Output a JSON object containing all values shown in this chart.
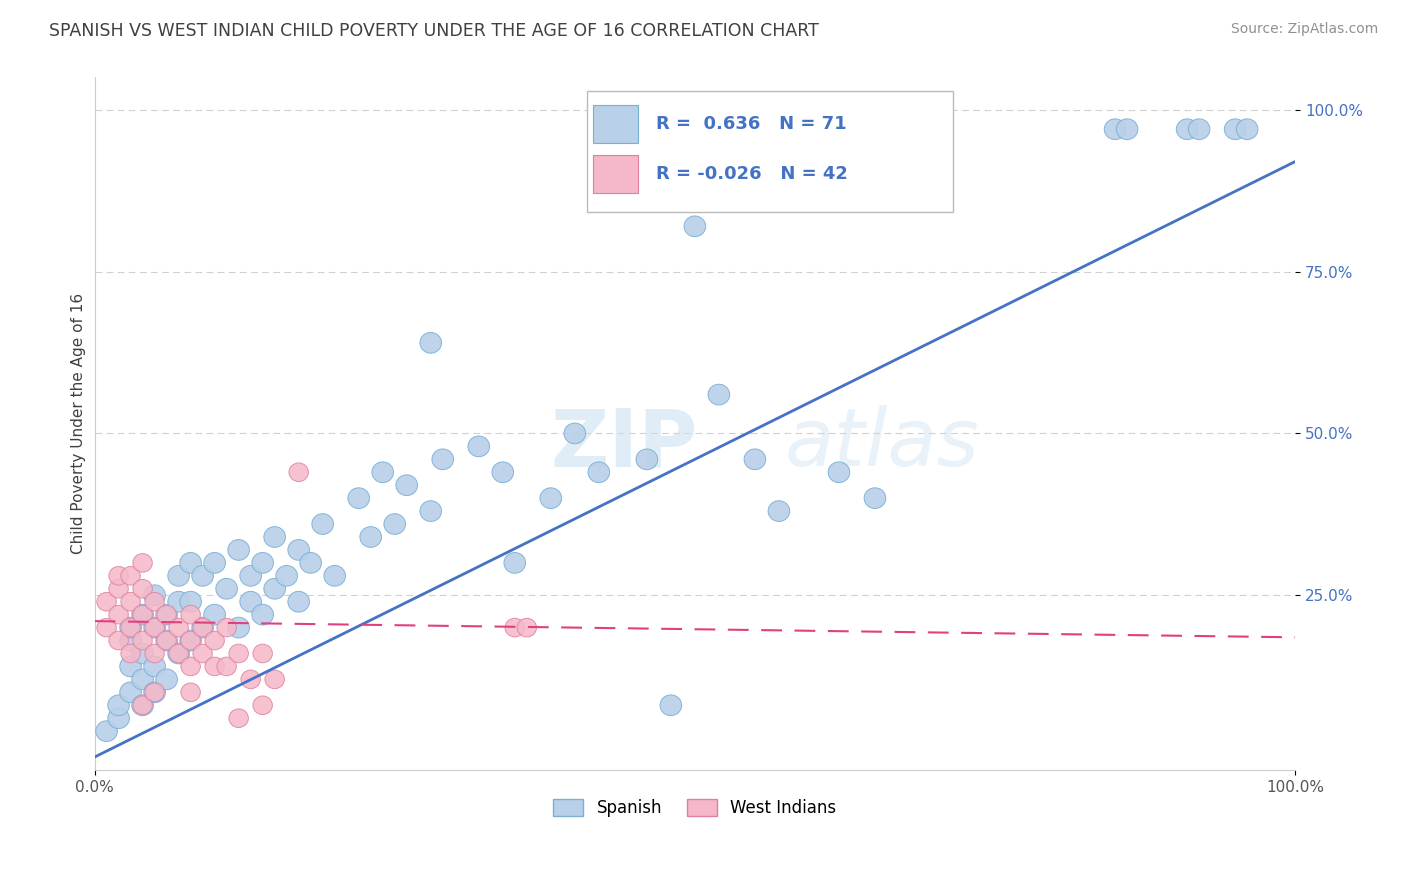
{
  "title": "SPANISH VS WEST INDIAN CHILD POVERTY UNDER THE AGE OF 16 CORRELATION CHART",
  "source": "Source: ZipAtlas.com",
  "ylabel": "Child Poverty Under the Age of 16",
  "xlim": [
    0.0,
    1.0
  ],
  "ylim": [
    -0.02,
    1.05
  ],
  "ytick_vals": [
    0.25,
    0.5,
    0.75,
    1.0
  ],
  "ytick_labels": [
    "25.0%",
    "50.0%",
    "75.0%",
    "100.0%"
  ],
  "blue_R": 0.636,
  "blue_N": 71,
  "pink_R": -0.026,
  "pink_N": 42,
  "blue_color": "#b8d0e8",
  "pink_color": "#f5b8c8",
  "blue_edge_color": "#7aafd4",
  "pink_edge_color": "#e080a0",
  "blue_line_color": "#4472c4",
  "pink_line_color": "#e04080",
  "title_color": "#404040",
  "source_color": "#909090",
  "watermark": "ZIPAtlas",
  "blue_trend_x": [
    0.0,
    1.0
  ],
  "blue_trend_y": [
    0.0,
    0.92
  ],
  "pink_trend_x": [
    0.0,
    1.0
  ],
  "pink_trend_y": [
    0.21,
    0.185
  ],
  "blue_scatter": [
    [
      0.01,
      0.04
    ],
    [
      0.02,
      0.06
    ],
    [
      0.02,
      0.08
    ],
    [
      0.03,
      0.1
    ],
    [
      0.03,
      0.14
    ],
    [
      0.03,
      0.18
    ],
    [
      0.03,
      0.2
    ],
    [
      0.04,
      0.08
    ],
    [
      0.04,
      0.12
    ],
    [
      0.04,
      0.16
    ],
    [
      0.04,
      0.22
    ],
    [
      0.05,
      0.1
    ],
    [
      0.05,
      0.14
    ],
    [
      0.05,
      0.2
    ],
    [
      0.05,
      0.25
    ],
    [
      0.06,
      0.12
    ],
    [
      0.06,
      0.18
    ],
    [
      0.06,
      0.22
    ],
    [
      0.07,
      0.16
    ],
    [
      0.07,
      0.24
    ],
    [
      0.07,
      0.28
    ],
    [
      0.08,
      0.18
    ],
    [
      0.08,
      0.24
    ],
    [
      0.08,
      0.3
    ],
    [
      0.09,
      0.2
    ],
    [
      0.09,
      0.28
    ],
    [
      0.1,
      0.22
    ],
    [
      0.1,
      0.3
    ],
    [
      0.11,
      0.26
    ],
    [
      0.12,
      0.2
    ],
    [
      0.12,
      0.32
    ],
    [
      0.13,
      0.24
    ],
    [
      0.13,
      0.28
    ],
    [
      0.14,
      0.22
    ],
    [
      0.14,
      0.3
    ],
    [
      0.15,
      0.26
    ],
    [
      0.15,
      0.34
    ],
    [
      0.16,
      0.28
    ],
    [
      0.17,
      0.24
    ],
    [
      0.17,
      0.32
    ],
    [
      0.18,
      0.3
    ],
    [
      0.19,
      0.36
    ],
    [
      0.2,
      0.28
    ],
    [
      0.22,
      0.4
    ],
    [
      0.23,
      0.34
    ],
    [
      0.24,
      0.44
    ],
    [
      0.25,
      0.36
    ],
    [
      0.26,
      0.42
    ],
    [
      0.28,
      0.38
    ],
    [
      0.29,
      0.46
    ],
    [
      0.32,
      0.48
    ],
    [
      0.34,
      0.44
    ],
    [
      0.35,
      0.3
    ],
    [
      0.38,
      0.4
    ],
    [
      0.4,
      0.5
    ],
    [
      0.42,
      0.44
    ],
    [
      0.46,
      0.46
    ],
    [
      0.5,
      0.82
    ],
    [
      0.52,
      0.56
    ],
    [
      0.55,
      0.46
    ],
    [
      0.57,
      0.38
    ],
    [
      0.62,
      0.44
    ],
    [
      0.65,
      0.4
    ],
    [
      0.28,
      0.64
    ],
    [
      0.85,
      0.97
    ],
    [
      0.86,
      0.97
    ],
    [
      0.91,
      0.97
    ],
    [
      0.92,
      0.97
    ],
    [
      0.95,
      0.97
    ],
    [
      0.96,
      0.97
    ],
    [
      0.48,
      0.08
    ]
  ],
  "pink_scatter": [
    [
      0.01,
      0.2
    ],
    [
      0.01,
      0.24
    ],
    [
      0.02,
      0.18
    ],
    [
      0.02,
      0.22
    ],
    [
      0.02,
      0.26
    ],
    [
      0.02,
      0.28
    ],
    [
      0.03,
      0.16
    ],
    [
      0.03,
      0.2
    ],
    [
      0.03,
      0.24
    ],
    [
      0.03,
      0.28
    ],
    [
      0.04,
      0.18
    ],
    [
      0.04,
      0.22
    ],
    [
      0.04,
      0.26
    ],
    [
      0.04,
      0.3
    ],
    [
      0.05,
      0.16
    ],
    [
      0.05,
      0.2
    ],
    [
      0.05,
      0.24
    ],
    [
      0.06,
      0.18
    ],
    [
      0.06,
      0.22
    ],
    [
      0.07,
      0.16
    ],
    [
      0.07,
      0.2
    ],
    [
      0.08,
      0.18
    ],
    [
      0.08,
      0.14
    ],
    [
      0.08,
      0.22
    ],
    [
      0.09,
      0.16
    ],
    [
      0.09,
      0.2
    ],
    [
      0.1,
      0.14
    ],
    [
      0.1,
      0.18
    ],
    [
      0.11,
      0.14
    ],
    [
      0.11,
      0.2
    ],
    [
      0.12,
      0.16
    ],
    [
      0.13,
      0.12
    ],
    [
      0.14,
      0.16
    ],
    [
      0.15,
      0.12
    ],
    [
      0.17,
      0.44
    ],
    [
      0.35,
      0.2
    ],
    [
      0.36,
      0.2
    ],
    [
      0.04,
      0.08
    ],
    [
      0.05,
      0.1
    ],
    [
      0.12,
      0.06
    ],
    [
      0.14,
      0.08
    ],
    [
      0.08,
      0.1
    ]
  ]
}
